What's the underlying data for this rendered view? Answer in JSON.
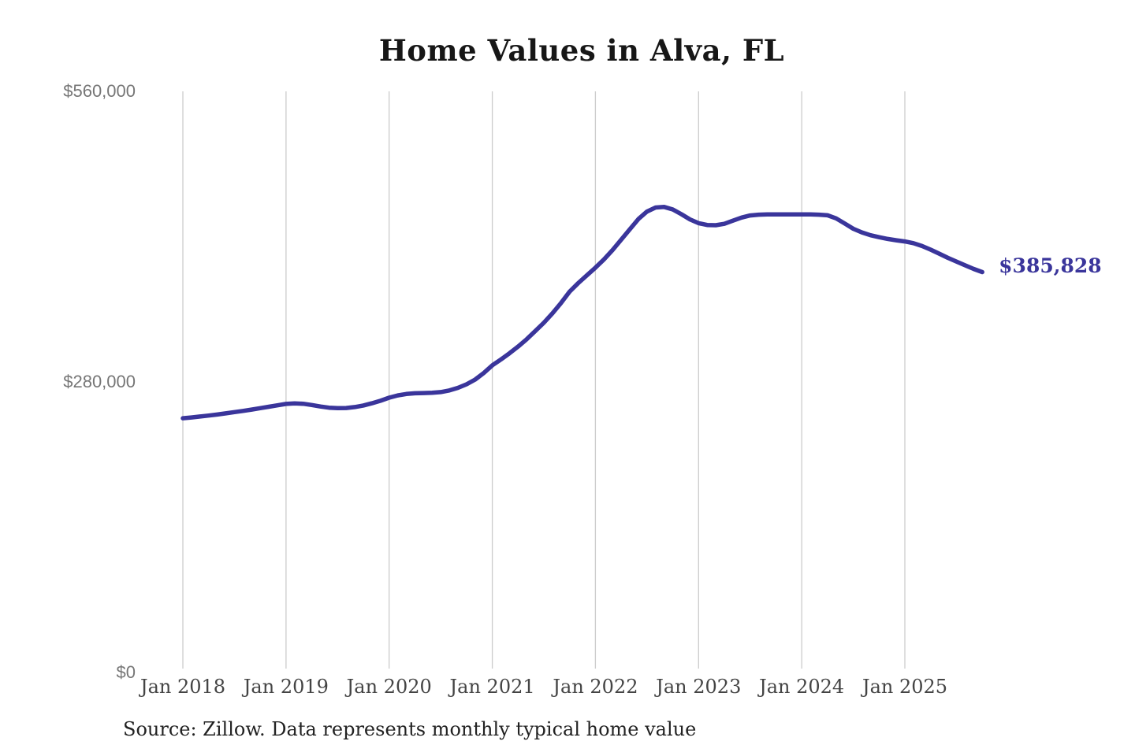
{
  "page": {
    "source_note": "Source: Zillow. Data represents monthly typical home value"
  },
  "colors": {
    "line": "#3a359b",
    "end_label": "#3a359b",
    "gridline": "#cccccc",
    "x_tick_label": "#444444",
    "y_tick_label": "#767676",
    "title": "#171717",
    "source": "#222222",
    "background": "#ffffff"
  },
  "chart_data": {
    "type": "line",
    "title": "Home Values in Alva, FL",
    "xlabel": "",
    "ylabel": "",
    "ylim": [
      0,
      560000
    ],
    "grid": "vertical-only",
    "legend": "none",
    "end_label": "$385,828",
    "latest_value": 385828,
    "y_ticks": [
      {
        "label": "$0",
        "value": 0
      },
      {
        "label": "$280,000",
        "value": 280000
      },
      {
        "label": "$560,000",
        "value": 560000
      }
    ],
    "x_ticks": [
      {
        "label": "Jan 2018",
        "month_index": 0
      },
      {
        "label": "Jan 2019",
        "month_index": 12
      },
      {
        "label": "Jan 2020",
        "month_index": 24
      },
      {
        "label": "Jan 2021",
        "month_index": 36
      },
      {
        "label": "Jan 2022",
        "month_index": 48
      },
      {
        "label": "Jan 2023",
        "month_index": 60
      },
      {
        "label": "Jan 2024",
        "month_index": 72
      },
      {
        "label": "Jan 2025",
        "month_index": 84
      }
    ],
    "series": [
      {
        "name": "Monthly typical home value",
        "x": [
          "2018-01",
          "2018-02",
          "2018-03",
          "2018-04",
          "2018-05",
          "2018-06",
          "2018-07",
          "2018-08",
          "2018-09",
          "2018-10",
          "2018-11",
          "2018-12",
          "2019-01",
          "2019-02",
          "2019-03",
          "2019-04",
          "2019-05",
          "2019-06",
          "2019-07",
          "2019-08",
          "2019-09",
          "2019-10",
          "2019-11",
          "2019-12",
          "2020-01",
          "2020-02",
          "2020-03",
          "2020-04",
          "2020-05",
          "2020-06",
          "2020-07",
          "2020-08",
          "2020-09",
          "2020-10",
          "2020-11",
          "2020-12",
          "2021-01",
          "2021-02",
          "2021-03",
          "2021-04",
          "2021-05",
          "2021-06",
          "2021-07",
          "2021-08",
          "2021-09",
          "2021-10",
          "2021-11",
          "2021-12",
          "2022-01",
          "2022-02",
          "2022-03",
          "2022-04",
          "2022-05",
          "2022-06",
          "2022-07",
          "2022-08",
          "2022-09",
          "2022-10",
          "2022-11",
          "2022-12",
          "2023-01",
          "2023-02",
          "2023-03",
          "2023-04",
          "2023-05",
          "2023-06",
          "2023-07",
          "2023-08",
          "2023-09",
          "2023-10",
          "2023-11",
          "2023-12",
          "2024-01",
          "2024-02",
          "2024-03",
          "2024-04",
          "2024-05",
          "2024-06",
          "2024-07",
          "2024-08",
          "2024-09",
          "2024-10",
          "2024-11",
          "2024-12",
          "2025-01",
          "2025-02",
          "2025-03",
          "2025-04",
          "2025-05",
          "2025-06",
          "2025-07",
          "2025-08",
          "2025-09",
          "2025-10"
        ],
        "values": [
          245000,
          245800,
          246700,
          247600,
          248600,
          249700,
          250900,
          252100,
          253400,
          254700,
          256100,
          257500,
          258800,
          259300,
          259000,
          257800,
          256300,
          255200,
          254700,
          254900,
          255800,
          257300,
          259400,
          261900,
          264800,
          267000,
          268400,
          269100,
          269300,
          269500,
          270200,
          271800,
          274300,
          277700,
          282300,
          288600,
          296000,
          301600,
          307600,
          314100,
          321100,
          329000,
          337100,
          346100,
          356100,
          367000,
          375200,
          382700,
          390100,
          398100,
          407200,
          417100,
          427100,
          437000,
          444200,
          448100,
          448600,
          446200,
          441600,
          436600,
          433000,
          431200,
          431000,
          432400,
          435400,
          438400,
          440400,
          441200,
          441400,
          441500,
          441500,
          441500,
          441500,
          441400,
          441200,
          440600,
          437600,
          432700,
          427600,
          424100,
          421400,
          419500,
          417800,
          416500,
          415400,
          413700,
          411000,
          407500,
          403600,
          399600,
          396000,
          392400,
          388900,
          385828
        ]
      }
    ]
  }
}
